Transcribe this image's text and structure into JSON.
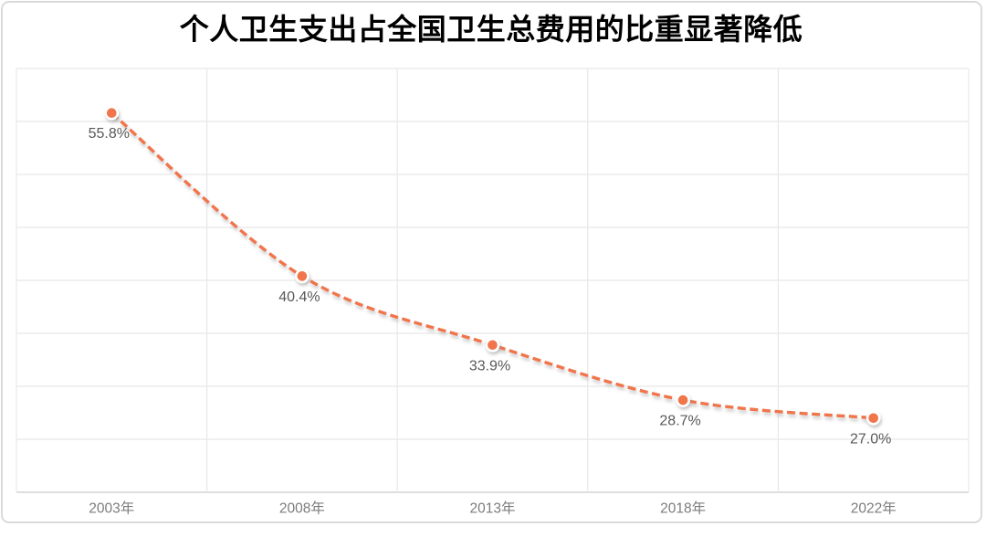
{
  "title": "个人卫生支出占全国卫生总费用的比重显著降低",
  "chart_data": {
    "type": "line",
    "title": "个人卫生支出占全国卫生总费用的比重显著降低",
    "categories": [
      "2003年",
      "2008年",
      "2013年",
      "2018年",
      "2022年"
    ],
    "values": [
      55.8,
      40.4,
      33.9,
      28.7,
      27.0
    ],
    "data_labels": [
      "55.8%",
      "40.4%",
      "33.9%",
      "28.7%",
      "27.0%"
    ],
    "xlabel": "",
    "ylabel": "",
    "ylim": [
      20,
      60
    ],
    "grid_step": 5,
    "grid": true,
    "legend": false,
    "y_tick_labels_visible": false,
    "line_style": "dashed",
    "smooth": true,
    "marker": "circle"
  },
  "colors": {
    "line": "#F0744C",
    "marker_fill": "#F0744C",
    "marker_ring": "#FFFFFF",
    "grid": "#E8E8E8",
    "axis": "#D3D3D3",
    "card_border": "#DADADA",
    "data_label": "#595959",
    "axis_label": "#7C7C7C",
    "title": "#000000",
    "background": "#FFFFFF"
  }
}
